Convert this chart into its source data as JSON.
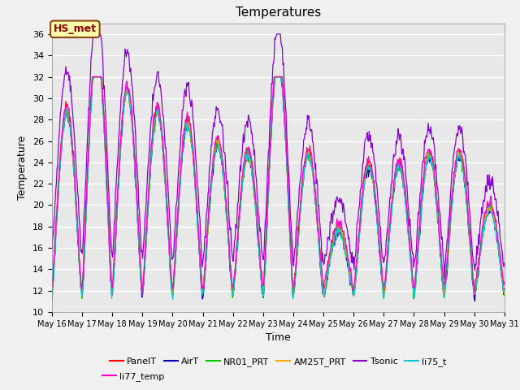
{
  "title": "Temperatures",
  "xlabel": "Time",
  "ylabel": "Temperature",
  "annotation": "HS_met",
  "ylim": [
    10,
    37
  ],
  "yticks": [
    10,
    12,
    14,
    16,
    18,
    20,
    22,
    24,
    26,
    28,
    30,
    32,
    34,
    36
  ],
  "xstart": 16,
  "xend": 31,
  "legend": [
    "PanelT",
    "AirT",
    "NR01_PRT",
    "AM25T_PRT",
    "Tsonic",
    "li75_t",
    "li77_temp"
  ],
  "colors": [
    "#ff0000",
    "#0000bb",
    "#00cc00",
    "#ffaa00",
    "#8800cc",
    "#00cccc",
    "#ff00cc"
  ],
  "bg_color": "#e8e8e8",
  "grid_color": "#ffffff",
  "title_fontsize": 11,
  "label_fontsize": 9,
  "tick_fontsize": 8
}
